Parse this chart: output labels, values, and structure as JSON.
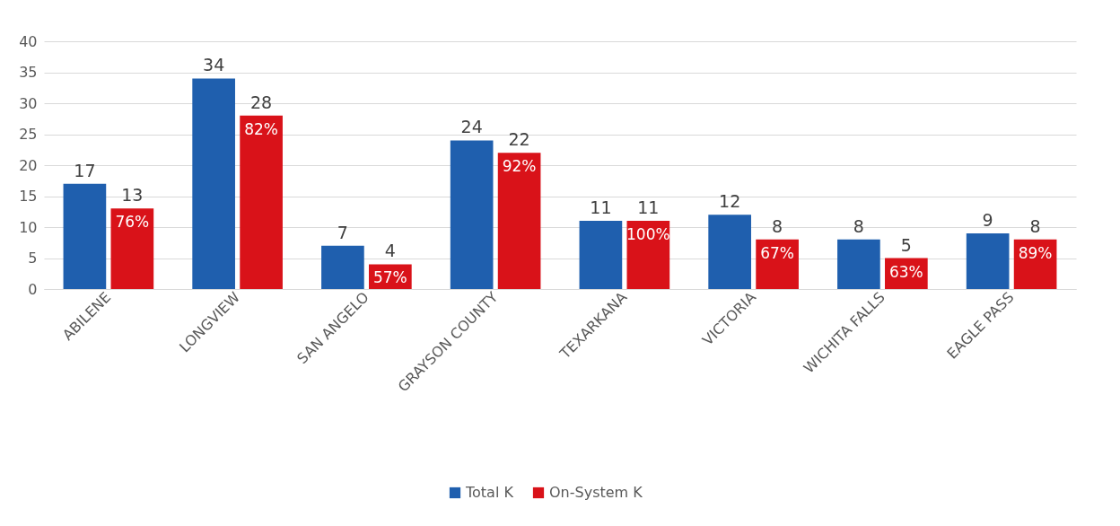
{
  "chart_data": {
    "type": "bar",
    "categories": [
      "ABILENE",
      "LONGVIEW",
      "SAN ANGELO",
      "GRAYSON COUNTY",
      "TEXARKANA",
      "VICTORIA",
      "WICHITA FALLS",
      "EAGLE PASS"
    ],
    "series": [
      {
        "name": "Total K",
        "color": "#1f5fae",
        "values": [
          17,
          34,
          7,
          24,
          11,
          12,
          8,
          9
        ]
      },
      {
        "name": "On-System K",
        "color": "#d91219",
        "values": [
          13,
          28,
          4,
          22,
          11,
          8,
          5,
          8
        ]
      }
    ],
    "ylim": [
      0,
      40
    ],
    "yticks": [
      0,
      5,
      10,
      15,
      20,
      25,
      30,
      35,
      40
    ],
    "grid": "y",
    "legend": "bottom",
    "data_labels": true,
    "annotations": [
      {
        "text": "76%",
        "x": "ABILENE",
        "y": 13
      },
      {
        "text": "82%",
        "x": "LONGVIEW",
        "y": 28
      },
      {
        "text": "57%",
        "x": "SAN ANGELO",
        "y": 4
      },
      {
        "text": "92%",
        "x": "GRAYSON COUNTY",
        "y": 22
      },
      {
        "text": "100%",
        "x": "TEXARKANA",
        "y": 11
      },
      {
        "text": "67%",
        "x": "VICTORIA",
        "y": 8
      },
      {
        "text": "63%",
        "x": "WICHITA FALLS",
        "y": 5
      },
      {
        "text": "89%",
        "x": "EAGLE PASS",
        "y": 8
      }
    ]
  }
}
